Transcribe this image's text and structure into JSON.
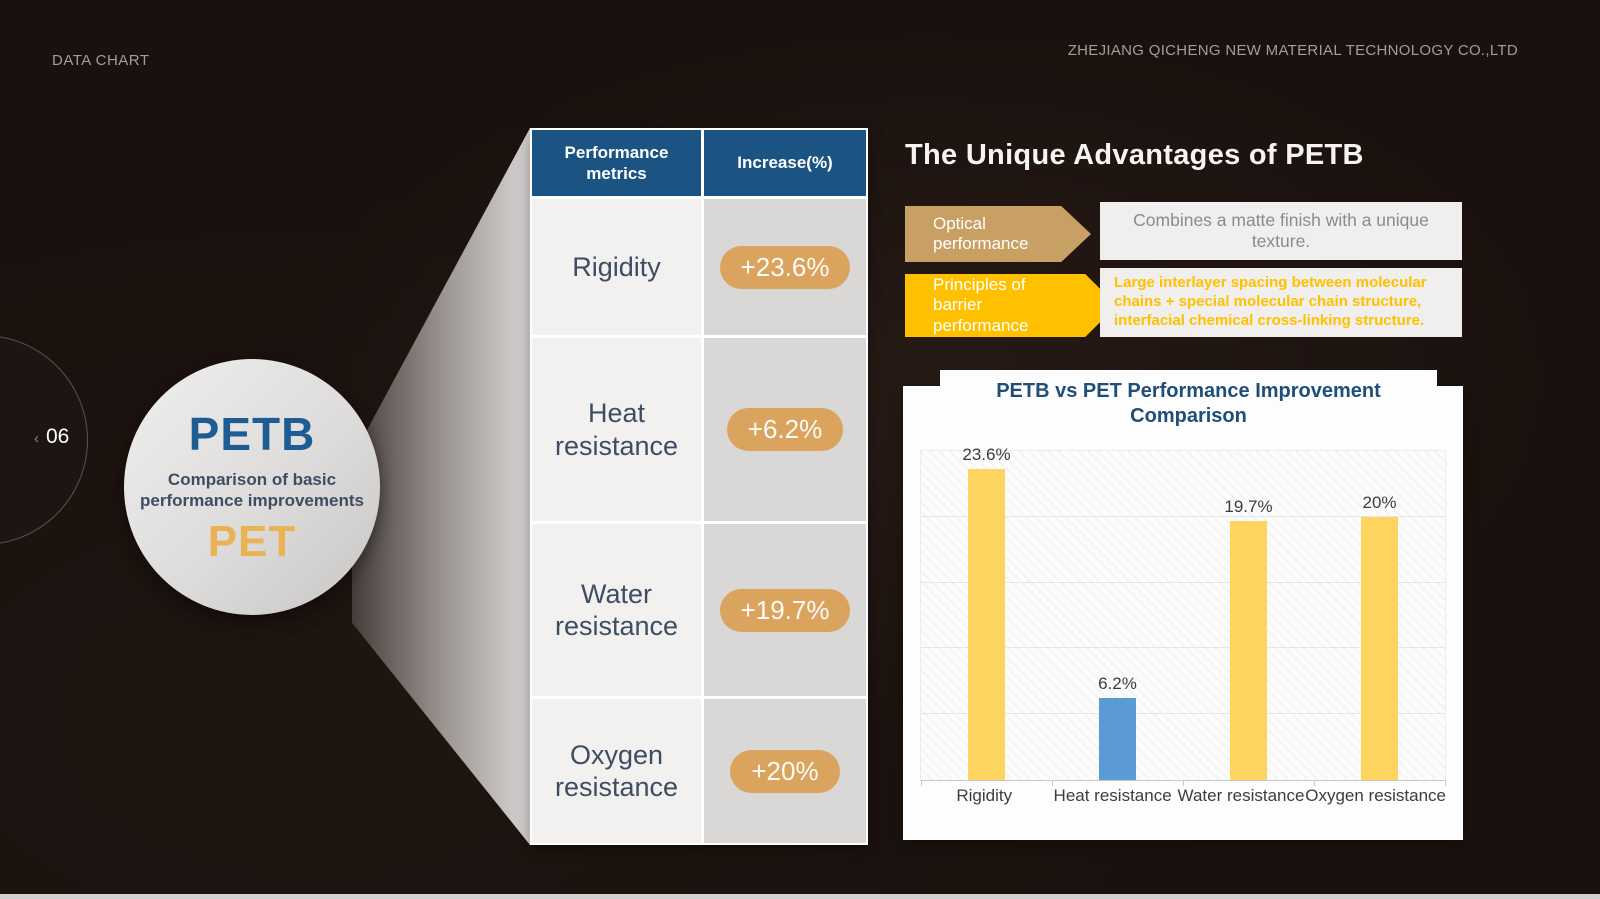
{
  "header": {
    "left": "DATA CHART",
    "right": "ZHEJIANG QICHENG NEW MATERIAL TECHNOLOGY  CO.,LTD"
  },
  "pager": {
    "chevron": "‹",
    "number": "06"
  },
  "bubble": {
    "top": "PETB",
    "middle": "Comparison of basic performance improvements",
    "bottom": "PET"
  },
  "table": {
    "headers": [
      "Performance metrics",
      "Increase(%)"
    ],
    "rows": [
      {
        "metric": "Rigidity",
        "increase": "+23.6%"
      },
      {
        "metric": "Heat resistance",
        "increase": "+6.2%"
      },
      {
        "metric": "Water resistance",
        "increase": "+19.7%"
      },
      {
        "metric": "Oxygen resistance",
        "increase": "+20%"
      }
    ]
  },
  "advantages": {
    "title": "The Unique Advantages of PETB",
    "items": [
      {
        "label": "Optical performance",
        "text": "Combines a matte finish with a unique texture.",
        "arrow_color": "#c9a063",
        "text_color": "#8b8b8b"
      },
      {
        "label": "Principles of barrier performance",
        "text": "Large interlayer spacing between molecular chains + special molecular chain structure, interfacial chemical cross-linking structure.",
        "arrow_color": "#ffc000",
        "text_color": "#ffc000"
      }
    ]
  },
  "chart_data": {
    "type": "bar",
    "title": "PETB vs PET Performance Improvement Comparison",
    "categories": [
      "Rigidity",
      "Heat resistance",
      "Water resistance",
      "Oxygen resistance"
    ],
    "values": [
      23.6,
      6.2,
      19.7,
      20
    ],
    "labels": [
      "23.6%",
      "6.2%",
      "19.7%",
      "20%"
    ],
    "colors": [
      "#fcd45f",
      "#5b9bd5",
      "#fcd45f",
      "#fcd45f"
    ],
    "xlabel": "",
    "ylabel": "",
    "ylim": [
      0,
      25
    ],
    "gridline_step": 5,
    "grid": true,
    "legend": "none",
    "background": "diagonal-hatch"
  },
  "accent_colors": {
    "table_header_bg": "#1b5383",
    "pill_bg": "#dba45e",
    "petb_blue": "#1e5c94",
    "pet_gold": "#e9b353",
    "chart_title_blue": "#1f4e79",
    "bar_yellow": "#fcd45f",
    "bar_blue": "#5b9bd5",
    "highlight_yellow": "#ffc000"
  }
}
